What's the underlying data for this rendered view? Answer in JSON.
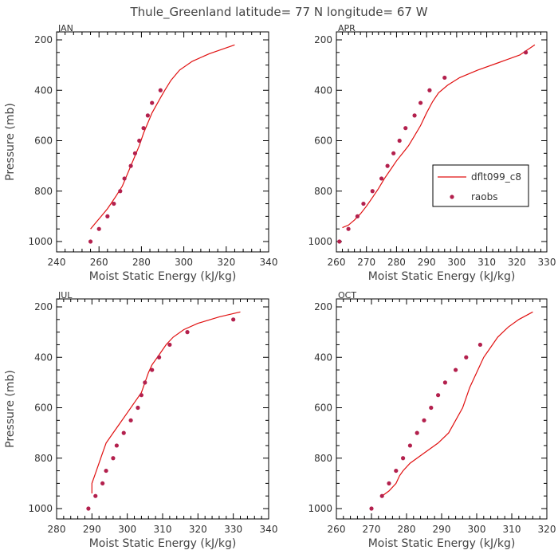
{
  "figure": {
    "title": "Thule_Greenland  latitude= 77 N longitude= 67 W"
  },
  "colors": {
    "model_line": "#e01010",
    "raobs_marker": "#b3204d",
    "axis": "#000000",
    "text": "#444444"
  },
  "legend": {
    "panel": "APR",
    "position": "center-right",
    "entries": [
      {
        "label": "dflt099_c8",
        "kind": "line"
      },
      {
        "label": "raobs",
        "kind": "marker"
      }
    ]
  },
  "chart_data": [
    {
      "type": "scatter",
      "panel_label": "JAN",
      "xlabel": "Moist Static Energy (kJ/kg)",
      "ylabel": "Pressure (mb)",
      "xlim": [
        240,
        340
      ],
      "ylim": [
        1000,
        200
      ],
      "y_inverted": true,
      "xticks": [
        240,
        260,
        280,
        300,
        320,
        340
      ],
      "yticks": [
        200,
        400,
        600,
        800,
        1000
      ],
      "series": [
        {
          "name": "dflt099_c8",
          "style": "line",
          "points": [
            [
              256,
              950
            ],
            [
              258,
              930
            ],
            [
              261,
              900
            ],
            [
              264,
              870
            ],
            [
              266,
              845
            ],
            [
              268,
              820
            ],
            [
              271,
              780
            ],
            [
              273,
              740
            ],
            [
              275,
              700
            ],
            [
              277,
              660
            ],
            [
              279,
              620
            ],
            [
              281,
              570
            ],
            [
              283,
              530
            ],
            [
              285,
              490
            ],
            [
              287,
              460
            ],
            [
              289,
              430
            ],
            [
              291,
              400
            ],
            [
              294,
              360
            ],
            [
              298,
              320
            ],
            [
              304,
              285
            ],
            [
              312,
              255
            ],
            [
              324,
              220
            ]
          ]
        },
        {
          "name": "raobs",
          "style": "markers",
          "points": [
            [
              256,
              1000
            ],
            [
              260,
              950
            ],
            [
              264,
              900
            ],
            [
              267,
              850
            ],
            [
              270,
              800
            ],
            [
              272,
              750
            ],
            [
              275,
              700
            ],
            [
              277,
              650
            ],
            [
              279,
              600
            ],
            [
              281,
              550
            ],
            [
              283,
              500
            ],
            [
              285,
              450
            ],
            [
              289,
              400
            ]
          ]
        }
      ]
    },
    {
      "type": "scatter",
      "panel_label": "APR",
      "xlabel": "Moist Static Energy (kJ/kg)",
      "ylabel": "",
      "xlim": [
        260,
        330
      ],
      "ylim": [
        1000,
        200
      ],
      "y_inverted": true,
      "xticks": [
        260,
        270,
        280,
        290,
        300,
        310,
        320,
        330
      ],
      "yticks": [
        200,
        400,
        600,
        800,
        1000
      ],
      "series": [
        {
          "name": "dflt099_c8",
          "style": "line",
          "points": [
            [
              262,
              945
            ],
            [
              264,
              935
            ],
            [
              266,
              915
            ],
            [
              268,
              890
            ],
            [
              270,
              860
            ],
            [
              272,
              825
            ],
            [
              274,
              790
            ],
            [
              276,
              750
            ],
            [
              278,
              715
            ],
            [
              280,
              680
            ],
            [
              282,
              650
            ],
            [
              284,
              620
            ],
            [
              286,
              580
            ],
            [
              288,
              540
            ],
            [
              290,
              490
            ],
            [
              292,
              445
            ],
            [
              294,
              410
            ],
            [
              297,
              380
            ],
            [
              301,
              350
            ],
            [
              307,
              320
            ],
            [
              314,
              290
            ],
            [
              321,
              260
            ],
            [
              326,
              220
            ]
          ]
        },
        {
          "name": "raobs",
          "style": "markers",
          "points": [
            [
              261,
              1000
            ],
            [
              264,
              950
            ],
            [
              267,
              900
            ],
            [
              269,
              850
            ],
            [
              272,
              800
            ],
            [
              275,
              750
            ],
            [
              277,
              700
            ],
            [
              279,
              650
            ],
            [
              281,
              600
            ],
            [
              283,
              550
            ],
            [
              286,
              500
            ],
            [
              288,
              450
            ],
            [
              291,
              400
            ],
            [
              296,
              350
            ],
            [
              323,
              250
            ]
          ]
        }
      ]
    },
    {
      "type": "scatter",
      "panel_label": "JUL",
      "xlabel": "Moist Static Energy (kJ/kg)",
      "ylabel": "Pressure (mb)",
      "xlim": [
        280,
        340
      ],
      "ylim": [
        1000,
        200
      ],
      "y_inverted": true,
      "xticks": [
        280,
        290,
        300,
        310,
        320,
        330,
        340
      ],
      "yticks": [
        200,
        400,
        600,
        800,
        1000
      ],
      "series": [
        {
          "name": "dflt099_c8",
          "style": "line",
          "points": [
            [
              290,
              940
            ],
            [
              290,
              900
            ],
            [
              291,
              860
            ],
            [
              292,
              820
            ],
            [
              293,
              780
            ],
            [
              294,
              740
            ],
            [
              296,
              700
            ],
            [
              298,
              660
            ],
            [
              300,
              620
            ],
            [
              302,
              580
            ],
            [
              304,
              540
            ],
            [
              305,
              500
            ],
            [
              306,
              460
            ],
            [
              307,
              430
            ],
            [
              309,
              390
            ],
            [
              311,
              350
            ],
            [
              313,
              320
            ],
            [
              316,
              290
            ],
            [
              320,
              265
            ],
            [
              326,
              240
            ],
            [
              332,
              220
            ]
          ]
        },
        {
          "name": "raobs",
          "style": "markers",
          "points": [
            [
              289,
              1000
            ],
            [
              291,
              950
            ],
            [
              293,
              900
            ],
            [
              294,
              850
            ],
            [
              296,
              800
            ],
            [
              297,
              750
            ],
            [
              299,
              700
            ],
            [
              301,
              650
            ],
            [
              303,
              600
            ],
            [
              304,
              550
            ],
            [
              305,
              500
            ],
            [
              307,
              450
            ],
            [
              309,
              400
            ],
            [
              312,
              350
            ],
            [
              317,
              300
            ],
            [
              330,
              250
            ]
          ]
        }
      ]
    },
    {
      "type": "scatter",
      "panel_label": "OCT",
      "xlabel": "Moist Static Energy (kJ/kg)",
      "ylabel": "",
      "xlim": [
        260,
        320
      ],
      "ylim": [
        1000,
        200
      ],
      "y_inverted": true,
      "xticks": [
        260,
        270,
        280,
        290,
        300,
        310,
        320
      ],
      "yticks": [
        200,
        400,
        600,
        800,
        1000
      ],
      "series": [
        {
          "name": "dflt099_c8",
          "style": "line",
          "points": [
            [
              273,
              950
            ],
            [
              275,
              930
            ],
            [
              277,
              900
            ],
            [
              278,
              870
            ],
            [
              279,
              850
            ],
            [
              281,
              820
            ],
            [
              285,
              780
            ],
            [
              289,
              740
            ],
            [
              292,
              700
            ],
            [
              294,
              650
            ],
            [
              296,
              600
            ],
            [
              297,
              560
            ],
            [
              298,
              520
            ],
            [
              299,
              490
            ],
            [
              300,
              460
            ],
            [
              301,
              430
            ],
            [
              302,
              400
            ],
            [
              304,
              360
            ],
            [
              306,
              320
            ],
            [
              309,
              280
            ],
            [
              312,
              250
            ],
            [
              316,
              220
            ]
          ]
        },
        {
          "name": "raobs",
          "style": "markers",
          "points": [
            [
              270,
              1000
            ],
            [
              273,
              950
            ],
            [
              275,
              900
            ],
            [
              277,
              850
            ],
            [
              279,
              800
            ],
            [
              281,
              750
            ],
            [
              283,
              700
            ],
            [
              285,
              650
            ],
            [
              287,
              600
            ],
            [
              289,
              550
            ],
            [
              291,
              500
            ],
            [
              294,
              450
            ],
            [
              297,
              400
            ],
            [
              301,
              350
            ]
          ]
        }
      ]
    }
  ]
}
